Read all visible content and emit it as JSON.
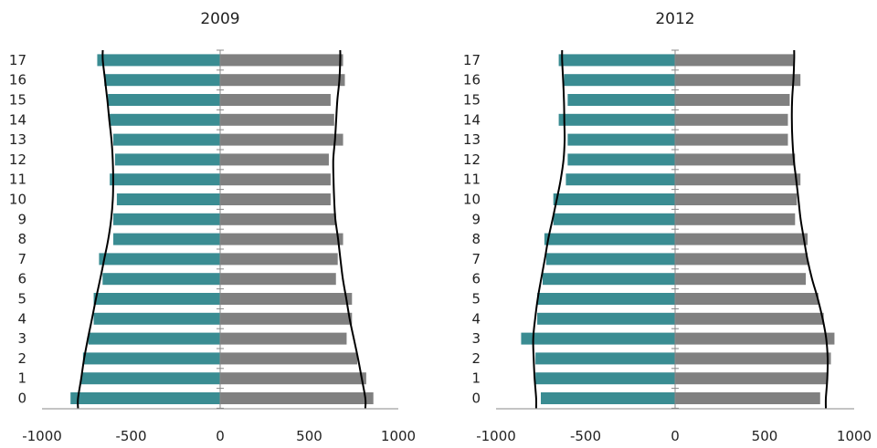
{
  "chart_data": [
    {
      "type": "bar",
      "orientation": "horizontal",
      "title": "2009",
      "categories": [
        "0",
        "1",
        "2",
        "3",
        "4",
        "5",
        "6",
        "7",
        "8",
        "9",
        "10",
        "11",
        "12",
        "13",
        "14",
        "15",
        "16",
        "17"
      ],
      "series": [
        {
          "values": [
            -840,
            -780,
            -770,
            -740,
            -710,
            -710,
            -660,
            -680,
            -600,
            -600,
            -580,
            -620,
            -590,
            -600,
            -620,
            -630,
            -650,
            -690
          ],
          "color": "#3a8c92"
        },
        {
          "values": [
            860,
            820,
            770,
            710,
            740,
            740,
            650,
            660,
            690,
            650,
            620,
            620,
            610,
            690,
            640,
            620,
            700,
            690
          ],
          "color": "#808080"
        }
      ],
      "curve_color": "#000000",
      "xlim": [
        -1000,
        1000
      ],
      "xticks": [
        "-1000",
        "-500",
        "0",
        "500",
        "1000"
      ],
      "grid": false
    },
    {
      "type": "bar",
      "orientation": "horizontal",
      "title": "2012",
      "categories": [
        "0",
        "1",
        "2",
        "3",
        "4",
        "5",
        "6",
        "7",
        "8",
        "9",
        "10",
        "11",
        "12",
        "13",
        "14",
        "15",
        "16",
        "17"
      ],
      "series": [
        {
          "values": [
            -750,
            -780,
            -780,
            -860,
            -770,
            -770,
            -740,
            -720,
            -730,
            -680,
            -680,
            -610,
            -600,
            -600,
            -650,
            -600,
            -620,
            -650
          ],
          "color": "#3a8c92"
        },
        {
          "values": [
            810,
            850,
            870,
            890,
            830,
            800,
            730,
            740,
            740,
            670,
            680,
            700,
            670,
            630,
            630,
            640,
            700,
            660
          ],
          "color": "#808080"
        }
      ],
      "curve_color": "#000000",
      "xlim": [
        -1000,
        1000
      ],
      "xticks": [
        "-1000",
        "-500",
        "0",
        "500",
        "1000"
      ],
      "grid": false
    }
  ]
}
